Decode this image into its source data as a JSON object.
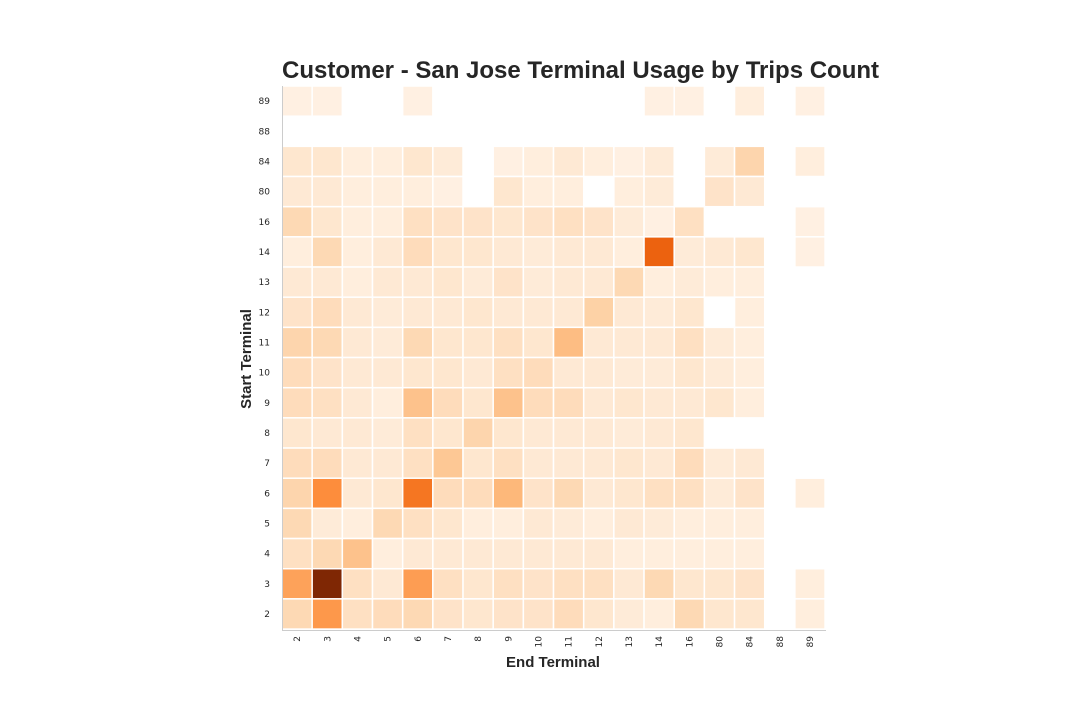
{
  "chart_data": {
    "type": "heatmap",
    "title": "Customer - San Jose Terminal Usage by Trips Count",
    "xlabel": "End Terminal",
    "ylabel": "Start Terminal",
    "x_categories": [
      "2",
      "3",
      "4",
      "5",
      "6",
      "7",
      "8",
      "9",
      "10",
      "11",
      "12",
      "13",
      "14",
      "16",
      "80",
      "84",
      "88",
      "89"
    ],
    "y_categories": [
      "89",
      "88",
      "84",
      "80",
      "16",
      "14",
      "13",
      "12",
      "11",
      "10",
      "9",
      "8",
      "7",
      "6",
      "5",
      "4",
      "3",
      "2"
    ],
    "colormap": [
      "#fff5eb",
      "#fee6ce",
      "#fdd0a2",
      "#fdae6b",
      "#fd8d3c",
      "#f16913",
      "#d94801",
      "#a63603",
      "#7f2704"
    ],
    "color_scale": "OrRd",
    "vmin": 0,
    "vmax": 100,
    "missing_cell": "blank",
    "grid": false,
    "values": [
      [
        4,
        4,
        null,
        null,
        4,
        null,
        null,
        null,
        null,
        null,
        null,
        null,
        4,
        4,
        null,
        6,
        null,
        4
      ],
      [
        null,
        null,
        null,
        null,
        null,
        null,
        null,
        null,
        null,
        null,
        null,
        null,
        null,
        null,
        null,
        null,
        null,
        null
      ],
      [
        12,
        12,
        6,
        6,
        12,
        8,
        null,
        4,
        6,
        10,
        6,
        4,
        8,
        null,
        8,
        22,
        null,
        6
      ],
      [
        10,
        10,
        6,
        6,
        6,
        4,
        null,
        12,
        6,
        6,
        null,
        6,
        8,
        null,
        14,
        10,
        null,
        null
      ],
      [
        20,
        12,
        6,
        6,
        16,
        14,
        14,
        12,
        14,
        16,
        14,
        8,
        4,
        16,
        null,
        null,
        null,
        4
      ],
      [
        6,
        20,
        6,
        10,
        18,
        12,
        12,
        10,
        8,
        10,
        10,
        6,
        65,
        8,
        10,
        12,
        null,
        4
      ],
      [
        10,
        10,
        6,
        10,
        10,
        12,
        8,
        14,
        8,
        10,
        10,
        20,
        6,
        8,
        6,
        6,
        null,
        null
      ],
      [
        14,
        18,
        10,
        8,
        10,
        10,
        12,
        10,
        10,
        10,
        24,
        10,
        8,
        12,
        null,
        6,
        null,
        null
      ],
      [
        22,
        20,
        10,
        8,
        20,
        12,
        12,
        16,
        12,
        32,
        10,
        10,
        10,
        16,
        8,
        6,
        null,
        null
      ],
      [
        18,
        14,
        10,
        10,
        12,
        12,
        10,
        16,
        18,
        10,
        10,
        8,
        8,
        12,
        8,
        6,
        null,
        null
      ],
      [
        18,
        16,
        10,
        6,
        30,
        18,
        12,
        30,
        18,
        18,
        10,
        12,
        10,
        10,
        12,
        6,
        null,
        null
      ],
      [
        12,
        10,
        10,
        8,
        16,
        12,
        22,
        12,
        10,
        10,
        10,
        8,
        10,
        12,
        null,
        null,
        null,
        null
      ],
      [
        18,
        18,
        10,
        10,
        16,
        28,
        12,
        16,
        10,
        10,
        10,
        12,
        10,
        18,
        8,
        10,
        null,
        null
      ],
      [
        22,
        50,
        10,
        12,
        58,
        18,
        18,
        34,
        14,
        20,
        10,
        12,
        16,
        16,
        8,
        14,
        null,
        6
      ],
      [
        20,
        8,
        6,
        20,
        16,
        12,
        6,
        6,
        10,
        8,
        6,
        10,
        8,
        6,
        6,
        6,
        null,
        null
      ],
      [
        16,
        20,
        30,
        6,
        10,
        10,
        10,
        10,
        10,
        10,
        10,
        6,
        6,
        6,
        6,
        6,
        null,
        null
      ],
      [
        42,
        100,
        16,
        10,
        44,
        16,
        12,
        16,
        14,
        16,
        16,
        10,
        20,
        12,
        12,
        14,
        null,
        6
      ],
      [
        20,
        46,
        16,
        18,
        20,
        14,
        12,
        14,
        14,
        18,
        12,
        8,
        6,
        20,
        12,
        12,
        null,
        6
      ]
    ]
  }
}
